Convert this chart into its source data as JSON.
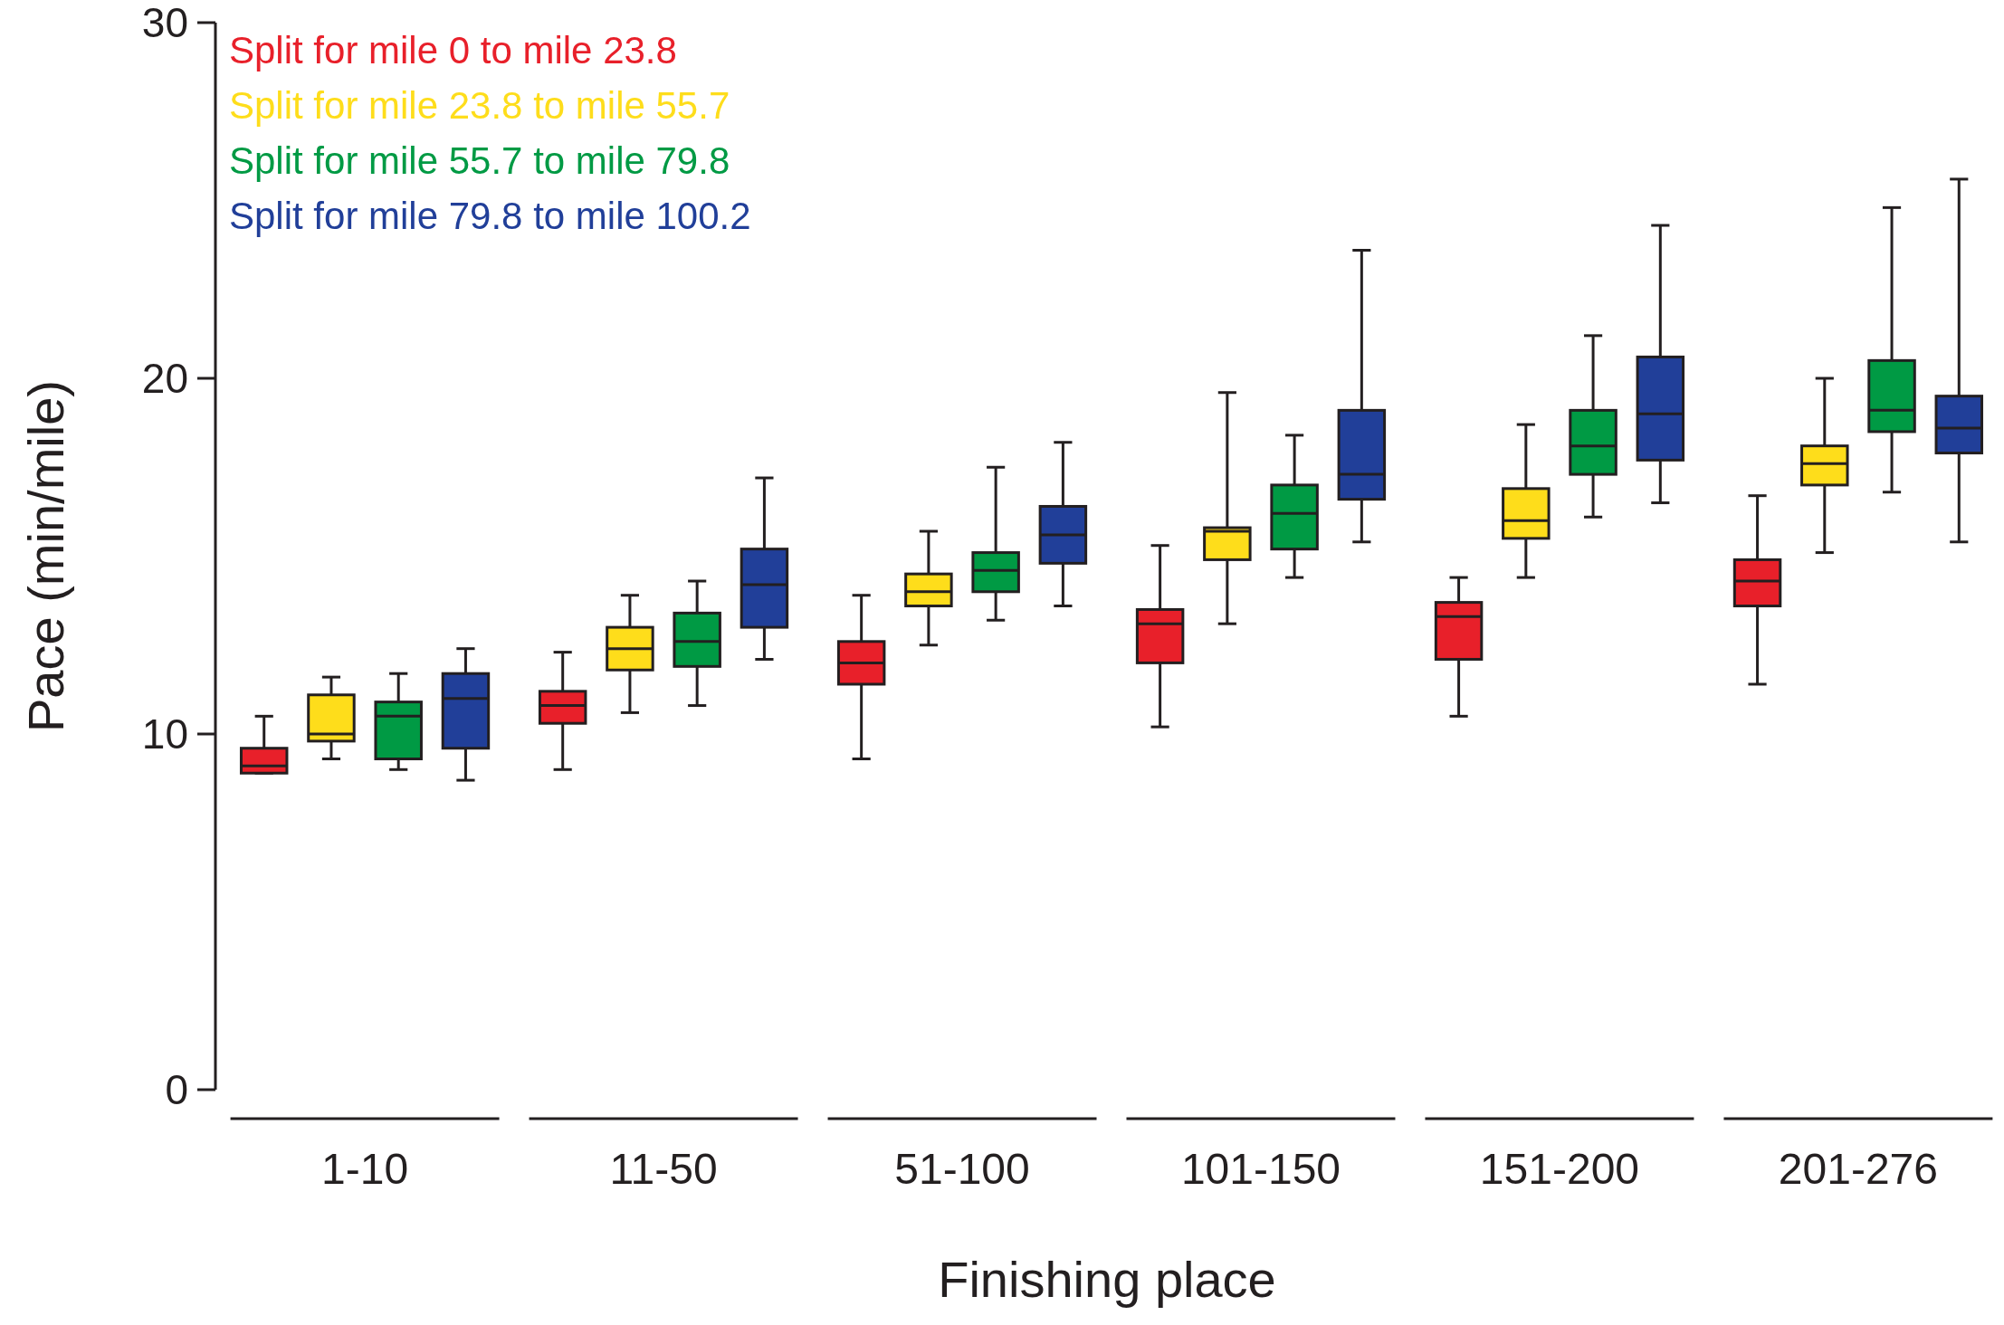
{
  "chart_data": {
    "type": "box",
    "xlabel": "Finishing place",
    "ylabel": "Pace (min/mile)",
    "categories": [
      "1-10",
      "11-50",
      "51-100",
      "101-150",
      "151-200",
      "201-276"
    ],
    "ylim": [
      0,
      30
    ],
    "yticks": [
      0,
      10,
      20,
      30
    ],
    "legend": "top left",
    "grid": false,
    "series": [
      {
        "name": "Split for mile 0 to mile 23.8",
        "color": "#e8202a",
        "boxes": [
          {
            "low": 8.9,
            "q1": 8.9,
            "median": 9.1,
            "q3": 9.6,
            "high": 10.5
          },
          {
            "low": 9.0,
            "q1": 10.3,
            "median": 10.8,
            "q3": 11.2,
            "high": 12.3
          },
          {
            "low": 9.3,
            "q1": 11.4,
            "median": 12.0,
            "q3": 12.6,
            "high": 13.9
          },
          {
            "low": 10.2,
            "q1": 12.0,
            "median": 13.1,
            "q3": 13.5,
            "high": 15.3
          },
          {
            "low": 10.5,
            "q1": 12.1,
            "median": 13.3,
            "q3": 13.7,
            "high": 14.4
          },
          {
            "low": 11.4,
            "q1": 13.6,
            "median": 14.3,
            "q3": 14.9,
            "high": 16.7
          }
        ]
      },
      {
        "name": "Split for mile 23.8 to mile 55.7",
        "color": "#fedd1b",
        "boxes": [
          {
            "low": 9.3,
            "q1": 9.8,
            "median": 10.0,
            "q3": 11.1,
            "high": 11.6
          },
          {
            "low": 10.6,
            "q1": 11.8,
            "median": 12.4,
            "q3": 13.0,
            "high": 13.9
          },
          {
            "low": 12.5,
            "q1": 13.6,
            "median": 14.0,
            "q3": 14.5,
            "high": 15.7
          },
          {
            "low": 13.1,
            "q1": 14.9,
            "median": 15.7,
            "q3": 15.8,
            "high": 19.6
          },
          {
            "low": 14.4,
            "q1": 15.5,
            "median": 16.0,
            "q3": 16.9,
            "high": 18.7
          },
          {
            "low": 15.1,
            "q1": 17.0,
            "median": 17.6,
            "q3": 18.1,
            "high": 20.0
          }
        ]
      },
      {
        "name": "Split for mile 55.7 to mile 79.8",
        "color": "#009a44",
        "boxes": [
          {
            "low": 9.0,
            "q1": 9.3,
            "median": 10.5,
            "q3": 10.9,
            "high": 11.7
          },
          {
            "low": 10.8,
            "q1": 11.9,
            "median": 12.6,
            "q3": 13.4,
            "high": 14.3
          },
          {
            "low": 13.2,
            "q1": 14.0,
            "median": 14.6,
            "q3": 15.1,
            "high": 17.5
          },
          {
            "low": 14.4,
            "q1": 15.2,
            "median": 16.2,
            "q3": 17.0,
            "high": 18.4
          },
          {
            "low": 16.1,
            "q1": 17.3,
            "median": 18.1,
            "q3": 19.1,
            "high": 21.2
          },
          {
            "low": 16.8,
            "q1": 18.5,
            "median": 19.1,
            "q3": 20.5,
            "high": 24.8
          }
        ]
      },
      {
        "name": "Split for mile 79.8 to mile 100.2",
        "color": "#213f99",
        "boxes": [
          {
            "low": 8.7,
            "q1": 9.6,
            "median": 11.0,
            "q3": 11.7,
            "high": 12.4
          },
          {
            "low": 12.1,
            "q1": 13.0,
            "median": 14.2,
            "q3": 15.2,
            "high": 17.2
          },
          {
            "low": 13.6,
            "q1": 14.8,
            "median": 15.6,
            "q3": 16.4,
            "high": 18.2
          },
          {
            "low": 15.4,
            "q1": 16.6,
            "median": 17.3,
            "q3": 19.1,
            "high": 23.6
          },
          {
            "low": 16.5,
            "q1": 17.7,
            "median": 19.0,
            "q3": 20.6,
            "high": 24.3
          },
          {
            "low": 15.4,
            "q1": 17.9,
            "median": 18.6,
            "q3": 19.5,
            "high": 25.6
          }
        ]
      }
    ]
  }
}
